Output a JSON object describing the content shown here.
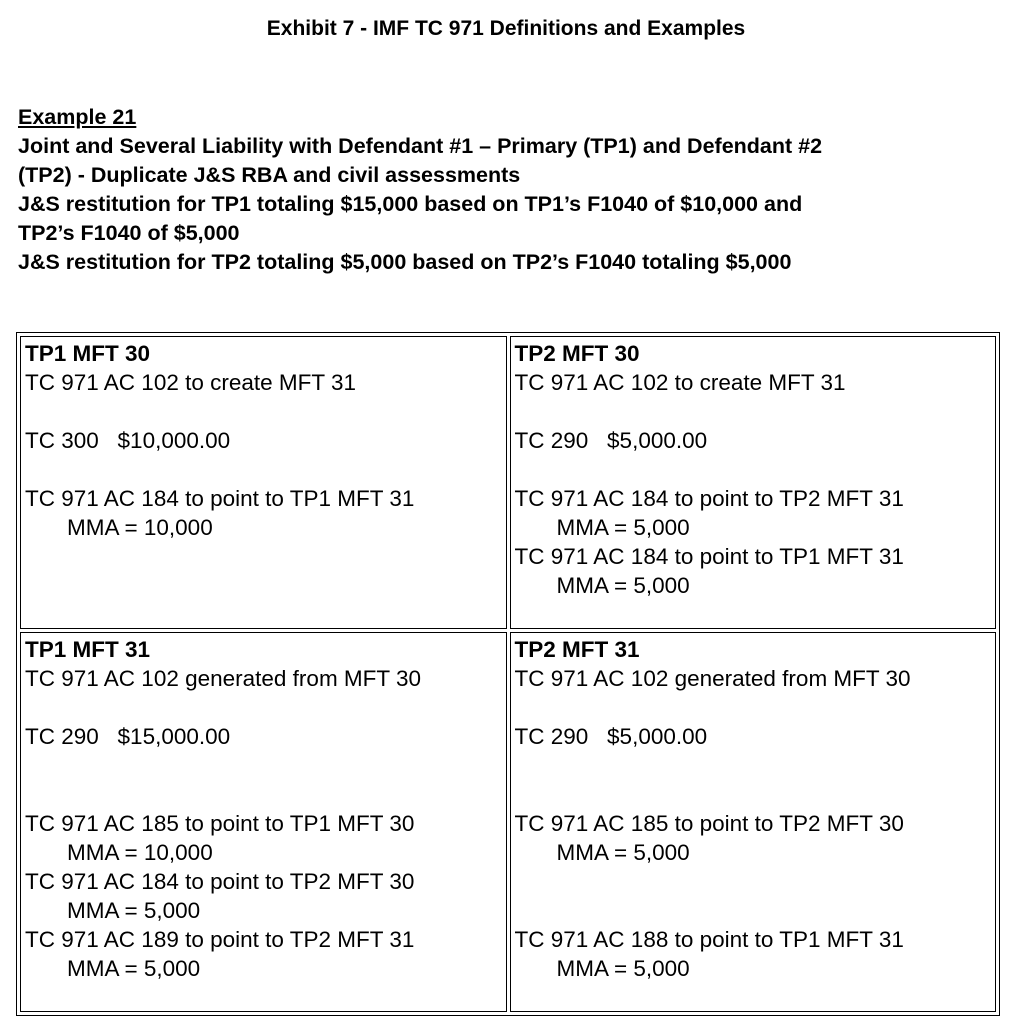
{
  "title": "Exhibit 7 - IMF TC 971 Definitions and Examples",
  "intro": {
    "example": "Example 21",
    "lines": [
      "Joint and Several Liability with Defendant #1 – Primary (TP1) and Defendant #2",
      "(TP2) - Duplicate J&S RBA and civil assessments",
      "J&S restitution for TP1 totaling $15,000 based on TP1’s F1040 of $10,000 and",
      "TP2’s F1040 of $5,000",
      "J&S restitution for TP2 totaling $5,000 based on TP2’s F1040 totaling $5,000"
    ]
  },
  "cells": [
    {
      "heading": "TP1 MFT 30",
      "lines": [
        {
          "t": "TC 971 AC 102 to create MFT 31",
          "i": 0
        },
        {
          "t": "",
          "i": 0
        },
        {
          "t": "TC 300   $10,000.00",
          "i": 0
        },
        {
          "t": "",
          "i": 0
        },
        {
          "t": "TC 971 AC 184 to point to TP1 MFT 31",
          "i": 0
        },
        {
          "t": "MMA = 10,000",
          "i": 1
        }
      ]
    },
    {
      "heading": "TP2 MFT 30",
      "lines": [
        {
          "t": "TC 971 AC 102 to create MFT 31",
          "i": 0
        },
        {
          "t": "",
          "i": 0
        },
        {
          "t": "TC 290   $5,000.00",
          "i": 0
        },
        {
          "t": "",
          "i": 0
        },
        {
          "t": "TC 971 AC 184 to point to TP2 MFT 31",
          "i": 0
        },
        {
          "t": "MMA = 5,000",
          "i": 1
        },
        {
          "t": "TC 971 AC 184 to point to TP1 MFT 31",
          "i": 0
        },
        {
          "t": "MMA = 5,000",
          "i": 1
        }
      ]
    },
    {
      "heading": "TP1 MFT 31",
      "lines": [
        {
          "t": "TC 971 AC 102 generated from MFT 30",
          "i": 0
        },
        {
          "t": "",
          "i": 0
        },
        {
          "t": "TC 290   $15,000.00",
          "i": 0
        },
        {
          "t": "",
          "i": 0
        },
        {
          "t": "",
          "i": 0
        },
        {
          "t": "TC 971 AC 185 to point to TP1 MFT 30",
          "i": 0
        },
        {
          "t": "MMA = 10,000",
          "i": 1
        },
        {
          "t": "TC 971 AC 184 to point to TP2 MFT 30",
          "i": 0
        },
        {
          "t": "MMA = 5,000",
          "i": 1
        },
        {
          "t": "TC 971 AC 189 to point to TP2 MFT 31",
          "i": 0
        },
        {
          "t": "MMA = 5,000",
          "i": 1
        }
      ]
    },
    {
      "heading": "TP2 MFT 31",
      "lines": [
        {
          "t": "TC 971 AC 102 generated from MFT 30",
          "i": 0
        },
        {
          "t": "",
          "i": 0
        },
        {
          "t": "TC 290   $5,000.00",
          "i": 0
        },
        {
          "t": "",
          "i": 0
        },
        {
          "t": "",
          "i": 0
        },
        {
          "t": "TC 971 AC 185 to point to TP2 MFT 30",
          "i": 0
        },
        {
          "t": "MMA = 5,000",
          "i": 1
        },
        {
          "t": "",
          "i": 0
        },
        {
          "t": "",
          "i": 0
        },
        {
          "t": "TC 971 AC 188 to point to TP1 MFT 31",
          "i": 0
        },
        {
          "t": "MMA = 5,000",
          "i": 1
        }
      ]
    }
  ]
}
